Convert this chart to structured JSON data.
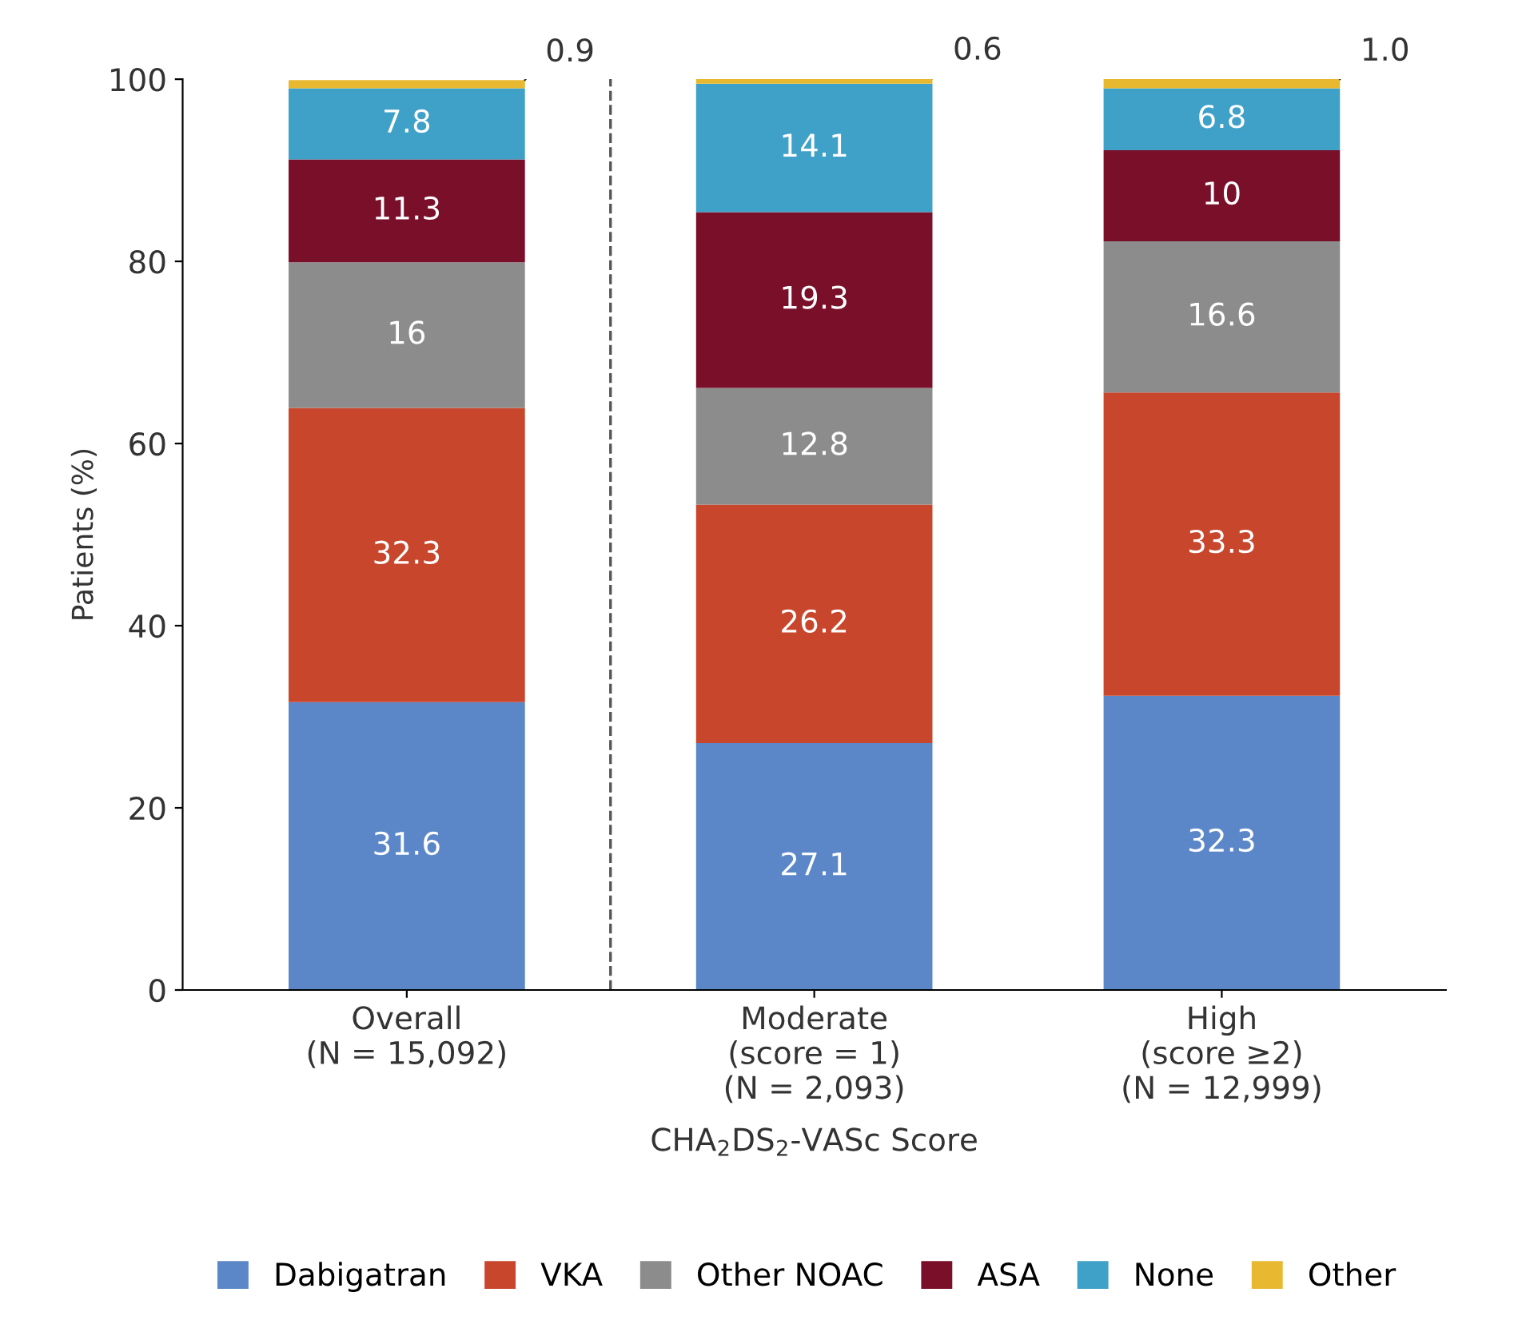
{
  "chart_data": {
    "type": "bar",
    "stacked": true,
    "ylabel": "Patients (%)",
    "xlabel": "CHA$_{2}$DS$_{2}$-VASc Score",
    "categories": [
      "Overall\n(N = 15,092)",
      "Moderate\n(score = 1)\n(N = 2,093)",
      "High\n(score ≥2)\n(N = 12,999)"
    ],
    "series": [
      {
        "name": "Dabigatran",
        "color": "#5b87c8",
        "values": [
          31.6,
          27.1,
          32.3
        ],
        "value_labels": [
          "31.6",
          "27.1",
          "32.3"
        ]
      },
      {
        "name": "VKA",
        "color": "#c8472c",
        "values": [
          32.3,
          26.2,
          33.3
        ],
        "value_labels": [
          "32.3",
          "26.2",
          "33.3"
        ]
      },
      {
        "name": "Other NOAC",
        "color": "#8c8c8c",
        "values": [
          16,
          12.8,
          16.6
        ],
        "value_labels": [
          "16",
          "12.8",
          "16.6"
        ]
      },
      {
        "name": "ASA",
        "color": "#7a0f2a",
        "values": [
          11.3,
          19.3,
          10
        ],
        "value_labels": [
          "11.3",
          "19.3",
          "10"
        ]
      },
      {
        "name": "None",
        "color": "#3fa0c8",
        "values": [
          7.8,
          14.1,
          6.8
        ],
        "value_labels": [
          "7.8",
          "14.1",
          "6.8"
        ]
      },
      {
        "name": "Other",
        "color": "#e8b830",
        "values": [
          0.9,
          0.6,
          1.0
        ],
        "value_labels": [
          "0.9",
          "0.6",
          "1.0"
        ]
      }
    ],
    "ylim": [
      0,
      100
    ],
    "yticks": [
      0,
      20,
      40,
      60,
      80,
      100
    ],
    "legend": "bottom",
    "grid": false
  }
}
